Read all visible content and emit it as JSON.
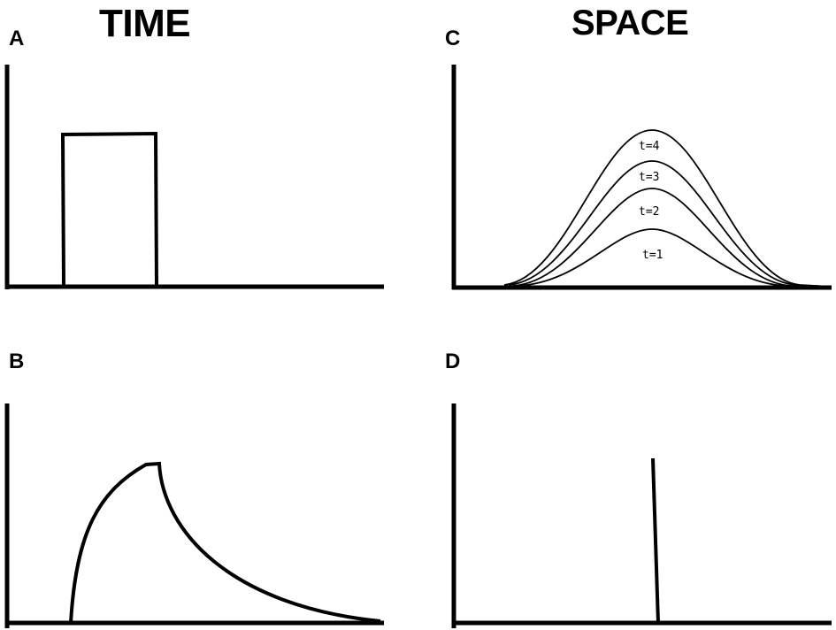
{
  "titles": {
    "left": "TIME",
    "right": "SPACE"
  },
  "panels": {
    "A": {
      "label": "A"
    },
    "B": {
      "label": "B"
    },
    "C": {
      "label": "C",
      "curve_labels": [
        "t=4",
        "t=3",
        "t=2",
        "t=1"
      ]
    },
    "D": {
      "label": "D"
    }
  },
  "colors": {
    "line": "#000000",
    "background": "#ffffff"
  }
}
